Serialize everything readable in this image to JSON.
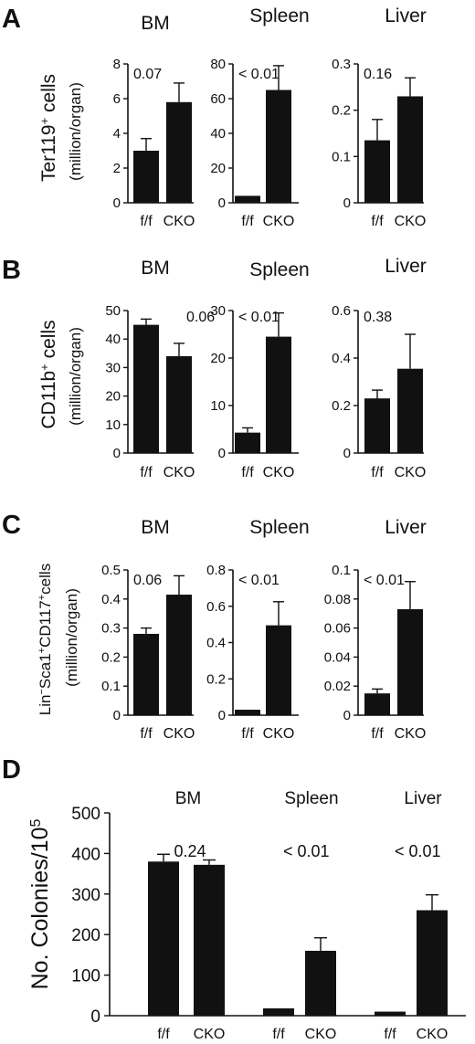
{
  "chart_data": [
    {
      "panel_letter": "A",
      "type": "bar",
      "ylabel_lines": [
        "Ter119+ cells",
        "(million/organ)"
      ],
      "subplots": [
        {
          "title": "BM",
          "categories": [
            "f/f",
            "CKO"
          ],
          "values": [
            3.0,
            5.8
          ],
          "errors": [
            0.7,
            1.1
          ],
          "ylim": [
            0,
            8
          ],
          "yticks": [
            "0",
            "2",
            "4",
            "6",
            "8"
          ],
          "pvalue": "0.07"
        },
        {
          "title": "Spleen",
          "categories": [
            "f/f",
            "CKO"
          ],
          "values": [
            4,
            65
          ],
          "errors": [
            0,
            14
          ],
          "ylim": [
            0,
            80
          ],
          "yticks": [
            "0",
            "20",
            "40",
            "60",
            "80"
          ],
          "pvalue": "< 0.01"
        },
        {
          "title": "Liver",
          "categories": [
            "f/f",
            "CKO"
          ],
          "values": [
            0.135,
            0.23
          ],
          "errors": [
            0.045,
            0.04
          ],
          "ylim": [
            0,
            0.3
          ],
          "yticks": [
            "0",
            "0.1",
            "0.2",
            "0.3"
          ],
          "pvalue": "0.16"
        }
      ]
    },
    {
      "panel_letter": "B",
      "type": "bar",
      "ylabel_lines": [
        "CD11b+ cells",
        "(million/organ)"
      ],
      "subplots": [
        {
          "title": "BM",
          "categories": [
            "f/f",
            "CKO"
          ],
          "values": [
            45,
            34
          ],
          "errors": [
            2,
            4.5
          ],
          "ylim": [
            0,
            50
          ],
          "yticks": [
            "0",
            "10",
            "20",
            "30",
            "40",
            "50"
          ],
          "pvalue": "0.06"
        },
        {
          "title": "Spleen",
          "categories": [
            "f/f",
            "CKO"
          ],
          "values": [
            4.3,
            24.5
          ],
          "errors": [
            1,
            5
          ],
          "ylim": [
            0,
            30
          ],
          "yticks": [
            "0",
            "10",
            "20",
            "30"
          ],
          "pvalue": "< 0.01"
        },
        {
          "title": "Liver",
          "categories": [
            "f/f",
            "CKO"
          ],
          "values": [
            0.23,
            0.355
          ],
          "errors": [
            0.035,
            0.145
          ],
          "ylim": [
            0,
            0.6
          ],
          "yticks": [
            "0",
            "0.2",
            "0.4",
            "0.6"
          ],
          "pvalue": "0.38"
        }
      ]
    },
    {
      "panel_letter": "C",
      "type": "bar",
      "ylabel_lines": [
        "Lin−Sca1+CD117+cells",
        "(million/organ)"
      ],
      "subplots": [
        {
          "title": "BM",
          "categories": [
            "f/f",
            "CKO"
          ],
          "values": [
            0.28,
            0.415
          ],
          "errors": [
            0.02,
            0.065
          ],
          "ylim": [
            0,
            0.5
          ],
          "yticks": [
            "0",
            "0.1",
            "0.2",
            "0.3",
            "0.4",
            "0.5"
          ],
          "pvalue": "0.06"
        },
        {
          "title": "Spleen",
          "categories": [
            "f/f",
            "CKO"
          ],
          "values": [
            0.03,
            0.495
          ],
          "errors": [
            0,
            0.13
          ],
          "ylim": [
            0,
            0.8
          ],
          "yticks": [
            "0",
            "0.2",
            "0.4",
            "0.6",
            "0.8"
          ],
          "pvalue": "< 0.01"
        },
        {
          "title": "Liver",
          "categories": [
            "f/f",
            "CKO"
          ],
          "values": [
            0.015,
            0.073
          ],
          "errors": [
            0.003,
            0.019
          ],
          "ylim": [
            0,
            0.1
          ],
          "yticks": [
            "0",
            "0.02",
            "0.04",
            "0.06",
            "0.08",
            "0.1"
          ],
          "pvalue": "< 0.01"
        }
      ]
    },
    {
      "panel_letter": "D",
      "type": "bar",
      "ylabel": "No. Colonies/10",
      "ylabel_sup": "5",
      "ylim": [
        0,
        500
      ],
      "yticks": [
        "0",
        "100",
        "200",
        "300",
        "400",
        "500"
      ],
      "groups": [
        {
          "title": "BM",
          "categories": [
            "f/f",
            "CKO"
          ],
          "values": [
            380,
            372
          ],
          "errors": [
            18,
            12
          ],
          "pvalue": "0.24"
        },
        {
          "title": "Spleen",
          "categories": [
            "f/f",
            "CKO"
          ],
          "values": [
            18,
            160
          ],
          "errors": [
            0,
            32
          ],
          "pvalue": "< 0.01"
        },
        {
          "title": "Liver",
          "categories": [
            "f/f",
            "CKO"
          ],
          "values": [
            10,
            260
          ],
          "errors": [
            0,
            38
          ],
          "pvalue": "< 0.01"
        }
      ]
    }
  ]
}
